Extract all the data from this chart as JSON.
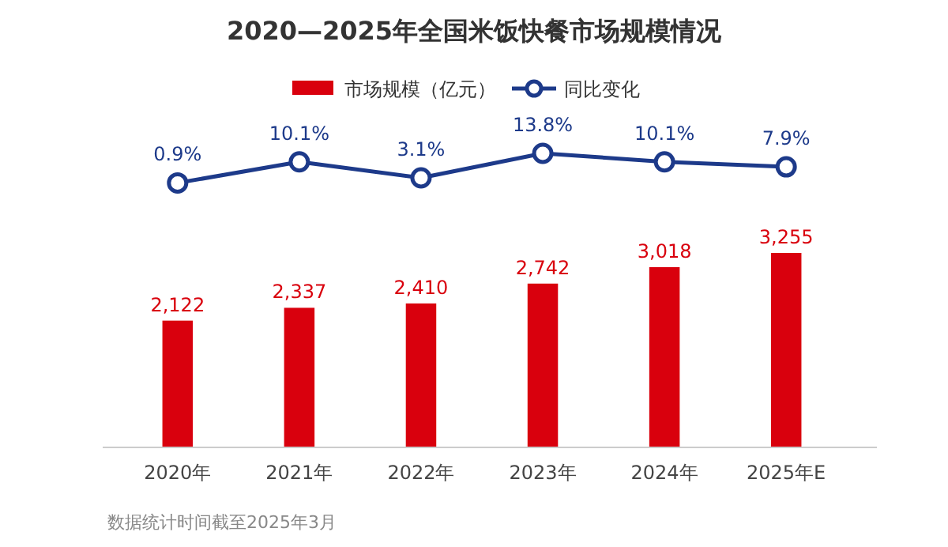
{
  "chart_data": [
    {
      "type": "line",
      "title": "2020—2025年全国米饭快餐市场规模情况",
      "categories": [
        null,
        null,
        null,
        null,
        null,
        null
      ],
      "series": [
        {
          "name": "同比变化",
          "color": "#1d3a8a",
          "values": [
            0.9,
            10.1,
            3.1,
            13.8,
            10.1,
            7.9
          ],
          "value_labels": [
            "0.9%",
            "10.1%",
            "3.1%",
            "13.8%",
            "10.1%",
            "7.9%"
          ]
        }
      ],
      "marker": "circle",
      "legend": "top"
    },
    {
      "type": "bar",
      "categories": [
        "2020年",
        "2021年",
        "2022年",
        "2023年",
        "2024年",
        "2025年E"
      ],
      "series": [
        {
          "name": "市场规模（亿元）",
          "color": "#d9000d",
          "values": [
            2122,
            2337,
            2410,
            2742,
            3018,
            3255
          ],
          "value_labels": [
            "2,122",
            "2,337",
            "2,410",
            "2,742",
            "3,018",
            "3,255"
          ]
        }
      ],
      "legend": "top",
      "annotations": [
        "数据统计时间截至2025年3月"
      ]
    }
  ]
}
